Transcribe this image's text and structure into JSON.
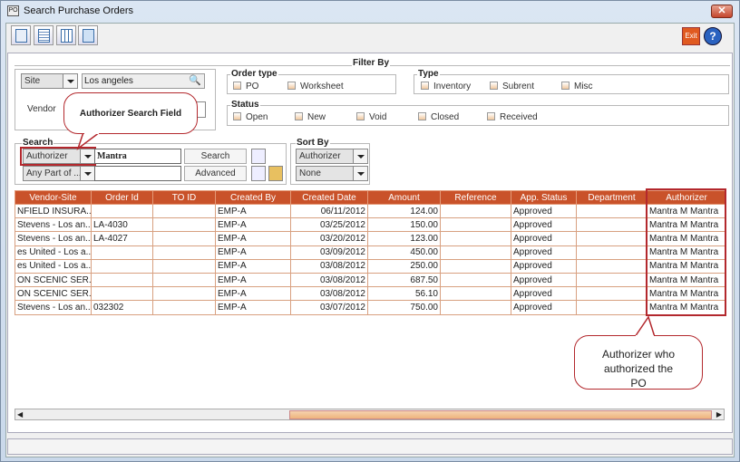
{
  "window": {
    "title": "Search Purchase Orders",
    "close": "✕",
    "app_icon": "po-icon"
  },
  "toolbar": {
    "buttons": [
      "new-icon",
      "document-icon",
      "grid-icon",
      "search-document-icon"
    ],
    "exit_label": "Exit",
    "help_label": "?"
  },
  "filter": {
    "legend": "Filter By",
    "site_select": "Site",
    "site_value": "Los angeles",
    "vendor_label": "Vendor",
    "order_type": {
      "legend": "Order type",
      "options": [
        "PO",
        "Worksheet"
      ]
    },
    "type": {
      "legend": "Type",
      "options": [
        "Inventory",
        "Subrent",
        "Misc"
      ]
    },
    "status": {
      "legend": "Status",
      "options": [
        "Open",
        "New",
        "Void",
        "Closed",
        "Received"
      ]
    }
  },
  "search": {
    "legend": "Search",
    "field_select": "Authorizer",
    "search_value": "Mantra",
    "match_select": "Any Part of ...",
    "match_value": "",
    "search_button": "Search",
    "advanced_button": "Advanced"
  },
  "sort": {
    "legend": "Sort By",
    "primary": "Authorizer",
    "secondary": "None"
  },
  "table": {
    "columns": [
      "Vendor-Site",
      "Order Id",
      "TO ID",
      "Created By",
      "Created Date",
      "Amount",
      "Reference",
      "App. Status",
      "Department",
      "Authorizer"
    ],
    "rows": [
      [
        "NFIELD INSURA...",
        "",
        "",
        "EMP-A",
        "06/11/2012",
        "124.00",
        "",
        "Approved",
        "",
        "Mantra M Mantra"
      ],
      [
        "Stevens - Los an...",
        "LA-4030",
        "",
        "EMP-A",
        "03/25/2012",
        "150.00",
        "",
        "Approved",
        "",
        "Mantra M Mantra"
      ],
      [
        "Stevens - Los an...",
        "LA-4027",
        "",
        "EMP-A",
        "03/20/2012",
        "123.00",
        "",
        "Approved",
        "",
        "Mantra M Mantra"
      ],
      [
        "es United - Los a...",
        "",
        "",
        "EMP-A",
        "03/09/2012",
        "450.00",
        "",
        "Approved",
        "",
        "Mantra M Mantra"
      ],
      [
        "es United - Los a...",
        "",
        "",
        "EMP-A",
        "03/08/2012",
        "250.00",
        "",
        "Approved",
        "",
        "Mantra M Mantra"
      ],
      [
        "ON SCENIC SER...",
        "",
        "",
        "EMP-A",
        "03/08/2012",
        "687.50",
        "",
        "Approved",
        "",
        "Mantra M Mantra"
      ],
      [
        "ON SCENIC SER...",
        "",
        "",
        "EMP-A",
        "03/08/2012",
        "56.10",
        "",
        "Approved",
        "",
        "Mantra M Mantra"
      ],
      [
        "Stevens - Los an...",
        "032302",
        "",
        "EMP-A",
        "03/07/2012",
        "750.00",
        "",
        "Approved",
        "",
        "Mantra M Mantra"
      ]
    ]
  },
  "callouts": {
    "search_field": "Authorizer Search Field",
    "authorizer_column": "Authorizer who authorized the PO"
  },
  "colors": {
    "header": "#c9522a",
    "highlight": "#b3282d",
    "scroll_thumb": "#eeb47d"
  }
}
